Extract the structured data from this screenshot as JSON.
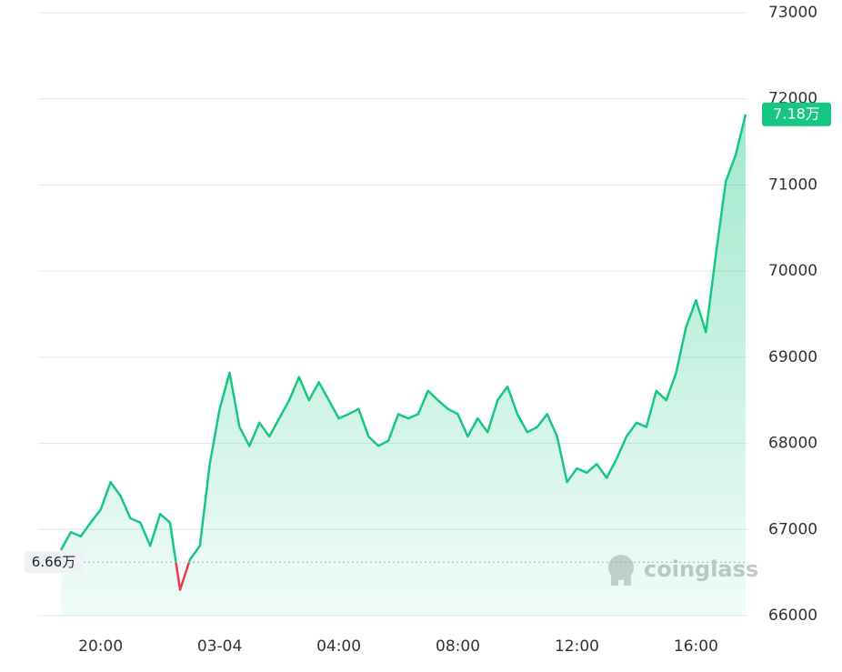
{
  "chart_data": {
    "type": "line",
    "categories": [
      null,
      null,
      null,
      null,
      "20:00",
      null,
      null,
      null,
      null,
      null,
      null,
      null,
      null,
      null,
      null,
      null,
      "03-04",
      null,
      null,
      null,
      null,
      null,
      null,
      null,
      null,
      null,
      null,
      null,
      "04:00",
      null,
      null,
      null,
      null,
      null,
      null,
      null,
      null,
      null,
      null,
      null,
      "08:00",
      null,
      null,
      null,
      null,
      null,
      null,
      null,
      null,
      null,
      null,
      null,
      "12:00",
      null,
      null,
      null,
      null,
      null,
      null,
      null,
      null,
      null,
      null,
      null,
      "16:00",
      null,
      null,
      null,
      null,
      null
    ],
    "series": [
      {
        "color": "#16c784",
        "down_color": "#f0384b",
        "values": [
          66760,
          66970,
          66920,
          67080,
          67230,
          67550,
          67390,
          67130,
          67080,
          66810,
          67180,
          67080,
          66300,
          66650,
          66810,
          67760,
          68400,
          68820,
          68190,
          67970,
          68240,
          68080,
          68290,
          68500,
          68770,
          68500,
          68710,
          68500,
          68290,
          68340,
          68400,
          68080,
          67970,
          68030,
          68340,
          68290,
          68340,
          68610,
          68500,
          68400,
          68340,
          68080,
          68290,
          68130,
          68500,
          68660,
          68340,
          68130,
          68190,
          68340,
          68080,
          67550,
          67710,
          67660,
          67760,
          67600,
          67820,
          68080,
          68240,
          68190,
          68610,
          68500,
          68820,
          69350,
          69660,
          69290,
          70190,
          71040,
          71350,
          71820
        ]
      }
    ],
    "ylim": [
      66000,
      73000
    ],
    "yticks": [
      66000,
      67000,
      68000,
      69000,
      70000,
      71000,
      72000,
      73000
    ],
    "grid": true,
    "reference_line": {
      "value": 66620,
      "label": "6.66万"
    },
    "current_price": {
      "value": 71820,
      "label": "7.18万"
    },
    "watermark": "coinglass"
  }
}
